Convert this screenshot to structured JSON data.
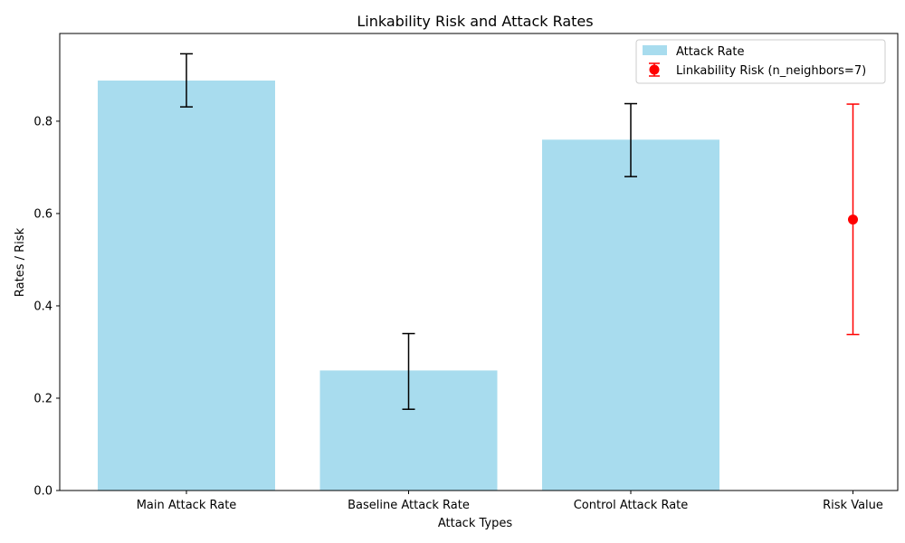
{
  "chart_data": {
    "type": "bar",
    "title": "Linkability Risk and Attack Rates",
    "xlabel": "Attack Types",
    "ylabel": "Rates / Risk",
    "categories": [
      "Main Attack Rate",
      "Baseline Attack Rate",
      "Control Attack Rate",
      "Risk Value"
    ],
    "ylim": [
      0,
      0.99
    ],
    "yticks": [
      "0.0",
      "0.2",
      "0.4",
      "0.6",
      "0.8"
    ],
    "series": [
      {
        "name": "Attack Rate",
        "type": "bar",
        "color": "#a8dcee",
        "values": [
          0.888,
          0.26,
          0.76,
          null
        ],
        "error_low": [
          0.831,
          0.176,
          0.68,
          null
        ],
        "error_high": [
          0.946,
          0.34,
          0.838,
          null
        ],
        "error_color": "#000000"
      },
      {
        "name": "Linkability Risk (n_neighbors=7)",
        "type": "point",
        "color": "#ff0000",
        "values": [
          null,
          null,
          null,
          0.587
        ],
        "error_low": [
          null,
          null,
          null,
          0.338
        ],
        "error_high": [
          null,
          null,
          null,
          0.837
        ]
      }
    ],
    "legend_position": "top-right",
    "grid": false
  }
}
